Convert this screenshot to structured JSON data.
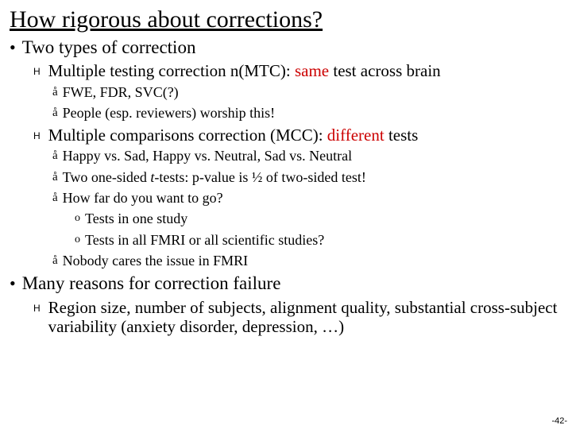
{
  "colors": {
    "text": "#000000",
    "highlight": "#cc0000",
    "background": "#ffffff"
  },
  "title": "How rigorous about corrections?",
  "b1": "Two types of correction",
  "b1_1_a": "Multiple testing correction n(MTC): ",
  "b1_1_b": "same",
  "b1_1_c": " test across brain",
  "b1_1_1": "FWE, FDR, SVC(?)",
  "b1_1_2": "People (esp. reviewers) worship this!",
  "b1_2_a": "Multiple comparisons correction (MCC): ",
  "b1_2_b": "different",
  "b1_2_c": " tests",
  "b1_2_1": "Happy vs. Sad, Happy vs. Neutral, Sad vs. Neutral",
  "b1_2_2_a": "Two one-sided ",
  "b1_2_2_b": "t",
  "b1_2_2_c": "-tests: p-value is ½ of two-sided test!",
  "b1_2_3": "How far do you want to go?",
  "b1_2_3_1": "Tests in one study",
  "b1_2_3_2": "Tests in all FMRI or all scientific studies?",
  "b1_2_4": "Nobody cares the issue in FMRI",
  "b2": "Many reasons for correction failure",
  "b2_1": "Region size, number of subjects, alignment quality, substantial cross-subject variability (anxiety disorder, depression, …)",
  "page": "-42-"
}
